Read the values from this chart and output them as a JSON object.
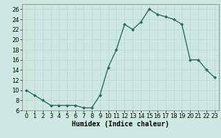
{
  "x": [
    0,
    1,
    2,
    3,
    4,
    5,
    6,
    7,
    8,
    9,
    10,
    11,
    12,
    13,
    14,
    15,
    16,
    17,
    18,
    19,
    20,
    21,
    22,
    23
  ],
  "y": [
    10,
    9,
    8,
    7,
    7,
    7,
    7,
    6.5,
    6.5,
    9,
    14.5,
    18,
    23,
    22,
    23.5,
    26,
    25,
    24.5,
    24,
    23,
    16,
    16,
    14,
    12.5
  ],
  "line_color": "#2e6b5e",
  "marker_color": "#2e6b5e",
  "bg_color": "#cce8e0",
  "grid_color": "#b8d8cf",
  "xlabel": "Humidex (Indice chaleur)",
  "ylabel": "",
  "xlim": [
    -0.5,
    23.5
  ],
  "ylim": [
    6,
    27
  ],
  "yticks": [
    6,
    8,
    10,
    12,
    14,
    16,
    18,
    20,
    22,
    24,
    26
  ],
  "xticks": [
    0,
    1,
    2,
    3,
    4,
    5,
    6,
    7,
    8,
    9,
    10,
    11,
    12,
    13,
    14,
    15,
    16,
    17,
    18,
    19,
    20,
    21,
    22,
    23
  ],
  "xlabel_fontsize": 7,
  "tick_fontsize": 6
}
